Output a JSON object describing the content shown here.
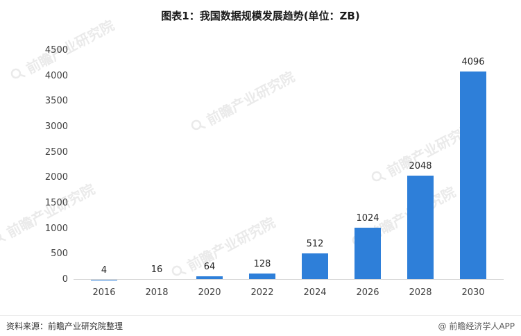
{
  "title": "图表1：我国数据规模发展趋势(单位：ZB)",
  "chart_data": {
    "type": "bar",
    "title": "图表1：我国数据规模发展趋势(单位：ZB)",
    "categories": [
      "2016",
      "2018",
      "2020",
      "2022",
      "2024",
      "2026",
      "2028",
      "2030"
    ],
    "values": [
      4,
      16,
      64,
      128,
      512,
      1024,
      2048,
      4096
    ],
    "data_labels": [
      "4",
      "16",
      "64",
      "128",
      "512",
      "1024",
      "2048",
      "4096"
    ],
    "xlabel": "",
    "ylabel": "",
    "ylim": [
      0,
      4500
    ],
    "ytick_interval": 500,
    "yticks": [
      0,
      500,
      1000,
      1500,
      2000,
      2500,
      3000,
      3500,
      4000,
      4500
    ],
    "grid": false,
    "legend_position": "none",
    "bar_color": "#2e7fd9"
  },
  "watermark": {
    "text": "前瞻产业研究院",
    "icon": "magnifier-logo"
  },
  "footer": {
    "source": "资料来源：前瞻产业研究院整理",
    "brand": "@ 前瞻经济学人APP"
  }
}
